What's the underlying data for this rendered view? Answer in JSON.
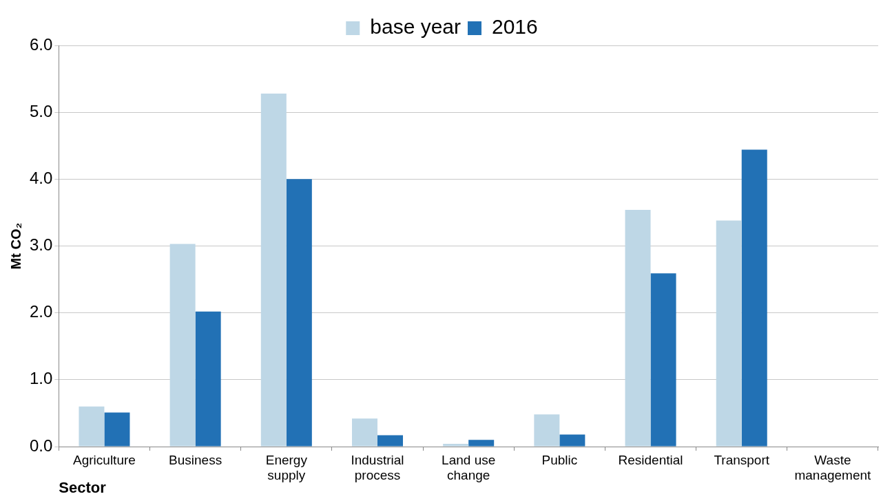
{
  "chart_data": {
    "type": "bar",
    "xlabel": "Sector",
    "ylabel": "Mt CO₂",
    "categories": [
      "Agriculture",
      "Business",
      "Energy supply",
      "Industrial process",
      "Land use change",
      "Public",
      "Residential",
      "Transport",
      "Waste management"
    ],
    "series": [
      {
        "name": "base year",
        "color": "#bed7e6",
        "values": [
          0.6,
          3.03,
          5.28,
          0.42,
          0.04,
          0.48,
          3.54,
          3.38,
          null
        ]
      },
      {
        "name": "2016",
        "color": "#2271b5",
        "values": [
          0.51,
          2.02,
          4.0,
          0.17,
          0.1,
          0.18,
          2.59,
          4.44,
          null
        ]
      }
    ],
    "ylim": [
      0,
      6
    ],
    "yticks": [
      {
        "value": 0,
        "label": "0.0"
      },
      {
        "value": 1,
        "label": "1.0"
      },
      {
        "value": 2,
        "label": "2.0"
      },
      {
        "value": 3,
        "label": "3.0"
      },
      {
        "value": 4,
        "label": "4.0"
      },
      {
        "value": 5,
        "label": "5.0"
      },
      {
        "value": 6,
        "label": "6.0"
      }
    ],
    "grid": "y",
    "legend": "top"
  }
}
